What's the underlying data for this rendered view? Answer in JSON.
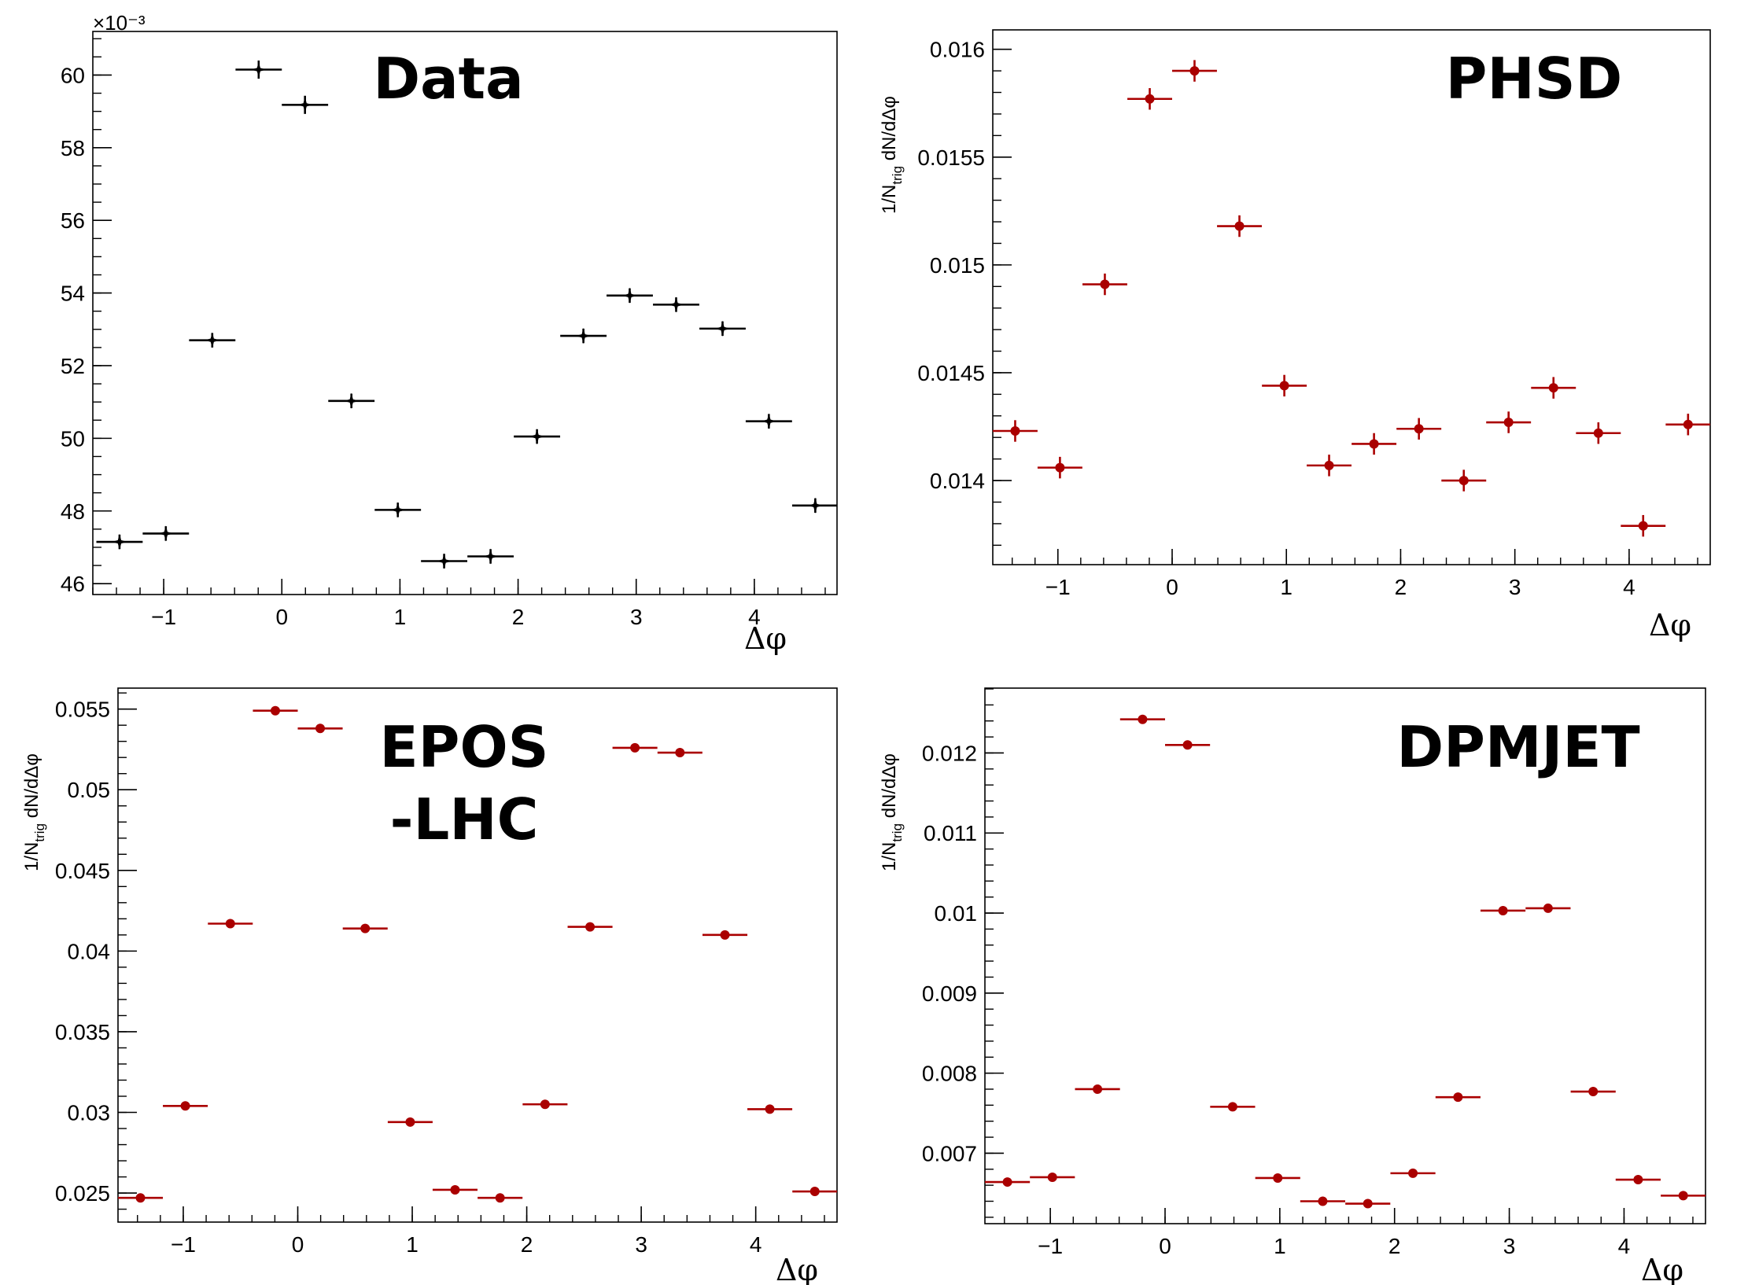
{
  "chart_data": [
    {
      "type": "scatter",
      "title": "Data",
      "title_lines": [
        "Data"
      ],
      "xlabel": "Δφ",
      "ylabel": "",
      "y_exponent": "×10⁻³",
      "color": "#000000",
      "marker": "star",
      "xlim": [
        -1.6,
        4.7
      ],
      "ylim": [
        45.7,
        61.2
      ],
      "x_ticks": [
        -1,
        0,
        1,
        2,
        3,
        4
      ],
      "x_tick_labels": [
        "−1",
        "0",
        "1",
        "2",
        "3",
        "4"
      ],
      "y_ticks": [
        46,
        48,
        50,
        52,
        54,
        56,
        58,
        60
      ],
      "y_tick_labels": [
        "46",
        "48",
        "50",
        "52",
        "54",
        "56",
        "58",
        "60"
      ],
      "y_minor_step": 0.5,
      "bin_half_width": 0.196,
      "x": [
        -1.374,
        -0.982,
        -0.589,
        -0.196,
        0.196,
        0.589,
        0.982,
        1.374,
        1.767,
        2.16,
        2.553,
        2.945,
        3.338,
        3.731,
        4.123,
        4.516
      ],
      "y": [
        47.15,
        47.38,
        52.7,
        60.15,
        59.18,
        51.03,
        48.03,
        46.62,
        46.75,
        50.05,
        52.82,
        53.93,
        53.68,
        53.02,
        50.47,
        48.15
      ],
      "yerr": [
        0.2,
        0.2,
        0.2,
        0.25,
        0.25,
        0.2,
        0.2,
        0.2,
        0.2,
        0.2,
        0.2,
        0.2,
        0.2,
        0.2,
        0.2,
        0.2
      ]
    },
    {
      "type": "scatter",
      "title": "PHSD",
      "title_lines": [
        "PHSD"
      ],
      "xlabel": "Δφ",
      "ylabel": "1/N_trig dN/dΔφ",
      "color": "#aa0000",
      "marker": "circle",
      "xlim": [
        -1.57,
        4.71
      ],
      "ylim": [
        0.01361,
        0.01609
      ],
      "x_ticks": [
        -1,
        0,
        1,
        2,
        3,
        4
      ],
      "x_tick_labels": [
        "−1",
        "0",
        "1",
        "2",
        "3",
        "4"
      ],
      "y_ticks": [
        0.014,
        0.0145,
        0.015,
        0.0155,
        0.016
      ],
      "y_tick_labels": [
        "0.014",
        "0.0145",
        "0.015",
        "0.0155",
        "0.016"
      ],
      "y_minor_step": 0.0001,
      "bin_half_width": 0.196,
      "x": [
        -1.374,
        -0.982,
        -0.589,
        -0.196,
        0.196,
        0.589,
        0.982,
        1.374,
        1.767,
        2.16,
        2.553,
        2.945,
        3.338,
        3.731,
        4.123,
        4.516
      ],
      "y": [
        0.01423,
        0.01406,
        0.01491,
        0.01577,
        0.0159,
        0.01518,
        0.01444,
        0.01407,
        0.01417,
        0.01424,
        0.014,
        0.01427,
        0.01443,
        0.01422,
        0.01379,
        0.01426
      ],
      "yerr": [
        5e-05,
        5e-05,
        5e-05,
        5e-05,
        5e-05,
        5e-05,
        5e-05,
        5e-05,
        5e-05,
        5e-05,
        5e-05,
        5e-05,
        5e-05,
        5e-05,
        5e-05,
        5e-05
      ]
    },
    {
      "type": "scatter",
      "title": "EPOS -LHC",
      "title_lines": [
        "EPOS",
        "-LHC"
      ],
      "xlabel": "Δφ",
      "ylabel": "1/N_trig dN/dΔφ",
      "color": "#aa0000",
      "marker": "circle",
      "xlim": [
        -1.57,
        4.71
      ],
      "ylim": [
        0.0232,
        0.0563
      ],
      "x_ticks": [
        -1,
        0,
        1,
        2,
        3,
        4
      ],
      "x_tick_labels": [
        "−1",
        "0",
        "1",
        "2",
        "3",
        "4"
      ],
      "y_ticks": [
        0.025,
        0.03,
        0.035,
        0.04,
        0.045,
        0.05,
        0.055
      ],
      "y_tick_labels": [
        "0.025",
        "0.03",
        "0.035",
        "0.04",
        "0.045",
        "0.05",
        "0.055"
      ],
      "y_minor_step": 0.001,
      "bin_half_width": 0.196,
      "x": [
        -1.374,
        -0.982,
        -0.589,
        -0.196,
        0.196,
        0.589,
        0.982,
        1.374,
        1.767,
        2.16,
        2.553,
        2.945,
        3.338,
        3.731,
        4.123,
        4.516
      ],
      "y": [
        0.0247,
        0.0304,
        0.0417,
        0.0549,
        0.0538,
        0.0414,
        0.0294,
        0.0252,
        0.0247,
        0.0305,
        0.0415,
        0.0526,
        0.0523,
        0.041,
        0.0302,
        0.0251
      ],
      "yerr": [
        0.0001,
        0.0001,
        0.0001,
        0.0001,
        0.0001,
        0.0001,
        0.0001,
        0.0001,
        0.0001,
        0.0001,
        0.0001,
        0.0001,
        0.0001,
        0.0001,
        0.0001,
        0.0001
      ]
    },
    {
      "type": "scatter",
      "title": "DPMJET",
      "title_lines": [
        "DPMJET"
      ],
      "xlabel": "Δφ",
      "ylabel": "1/N_trig dN/dΔφ",
      "color": "#aa0000",
      "marker": "circle",
      "xlim": [
        -1.57,
        4.71
      ],
      "ylim": [
        0.00612,
        0.01281
      ],
      "x_ticks": [
        -1,
        0,
        1,
        2,
        3,
        4
      ],
      "x_tick_labels": [
        "−1",
        "0",
        "1",
        "2",
        "3",
        "4"
      ],
      "y_ticks": [
        0.007,
        0.008,
        0.009,
        0.01,
        0.011,
        0.012
      ],
      "y_tick_labels": [
        "0.007",
        "0.008",
        "0.009",
        "0.01",
        "0.011",
        "0.012"
      ],
      "y_minor_step": 0.0002,
      "bin_half_width": 0.196,
      "x": [
        -1.374,
        -0.982,
        -0.589,
        -0.196,
        0.196,
        0.589,
        0.982,
        1.374,
        1.767,
        2.16,
        2.553,
        2.945,
        3.338,
        3.731,
        4.123,
        4.516
      ],
      "y": [
        0.00664,
        0.0067,
        0.0078,
        0.01242,
        0.0121,
        0.00758,
        0.00669,
        0.0064,
        0.00637,
        0.00675,
        0.0077,
        0.01003,
        0.01006,
        0.00777,
        0.00667,
        0.00647
      ],
      "yerr": [
        4e-05,
        4e-05,
        4e-05,
        5e-05,
        5e-05,
        4e-05,
        4e-05,
        4e-05,
        4e-05,
        4e-05,
        4e-05,
        5e-05,
        5e-05,
        4e-05,
        4e-05,
        4e-05
      ]
    }
  ]
}
